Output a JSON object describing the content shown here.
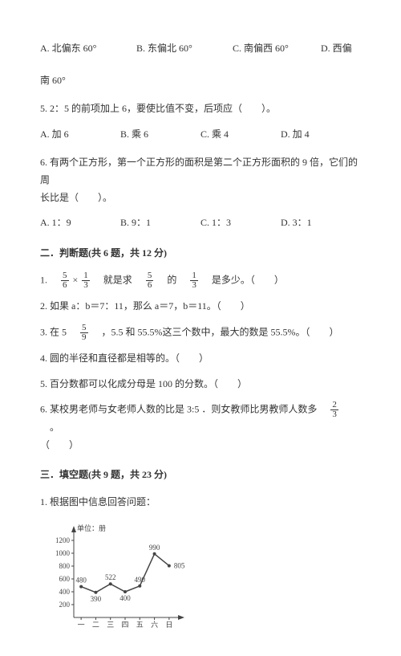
{
  "q4": {
    "optA": "A. 北偏东 60°",
    "optB": "B. 东偏北 60°",
    "optC": "C. 南偏西 60°",
    "optD": "D. 西偏",
    "optD_cont": "南 60°"
  },
  "q5": {
    "text": "5. 2：5 的前项加上 6，要使比值不变，后项应（　　）。",
    "optA": "A. 加 6",
    "optB": "B. 乘 6",
    "optC": "C. 乘 4",
    "optD": "D. 加 4"
  },
  "q6": {
    "text1": "6. 有两个正方形，第一个正方形的面积是第二个正方形面积的 9 倍，它们的周",
    "text2": "长比是（　　）。",
    "optA": "A. 1：9",
    "optB": "B. 9：1",
    "optC": "C. 1：3",
    "optD": "D. 3：1"
  },
  "section2": {
    "title": "二．判断题(共 6 题，共 12 分)",
    "q1": {
      "p1": "1.　",
      "p2": "×",
      "p3": "　就是求　",
      "p4": "　的　",
      "p5": "　是多少。（　　）"
    },
    "q2": "2. 如果 a：b＝7：11，那么 a＝7，b＝11。（　　）",
    "q3": {
      "p1": "3. 在 5　",
      "p2": "　，5.5 和 55.5%这三个数中，最大的数是 55.5%。（　　）"
    },
    "q4": "4. 圆的半径和直径都是相等的。（　　）",
    "q5": "5. 百分数都可以化成分母是 100 的分数。（　　）",
    "q6": {
      "p1": "6. 某校男老师与女老师人数的比是 3:5 ．则女教师比男教师人数多　",
      "p2": "　。",
      "p3": "（　　）"
    }
  },
  "section3": {
    "title": "三．填空题(共 9 题，共 23 分)",
    "q1": "1. 根据图中信息回答问题："
  },
  "fractions": {
    "f56": {
      "num": "5",
      "den": "6"
    },
    "f13": {
      "num": "1",
      "den": "3"
    },
    "f59": {
      "num": "5",
      "den": "9"
    },
    "f23": {
      "num": "2",
      "den": "3"
    }
  },
  "chart": {
    "unit_label": "单位：册",
    "y_ticks": [
      "200",
      "400",
      "600",
      "800",
      "1000",
      "1200"
    ],
    "x_labels": [
      "一",
      "二",
      "三",
      "四",
      "五",
      "六",
      "日"
    ],
    "values": [
      480,
      390,
      522,
      400,
      490,
      990,
      805
    ],
    "value_labels": [
      "480",
      "390",
      "522",
      "400",
      "490",
      "990",
      "805"
    ],
    "y_max": 1300,
    "width": 170,
    "height": 140,
    "margin": {
      "l": 32,
      "r": 10,
      "t": 18,
      "b": 18
    },
    "axis_color": "#444",
    "grid_on": false,
    "line_color": "#444",
    "line_width": 1.5,
    "marker_color": "#444",
    "marker_radius": 2,
    "font_size": 9,
    "bg": "#fff"
  }
}
